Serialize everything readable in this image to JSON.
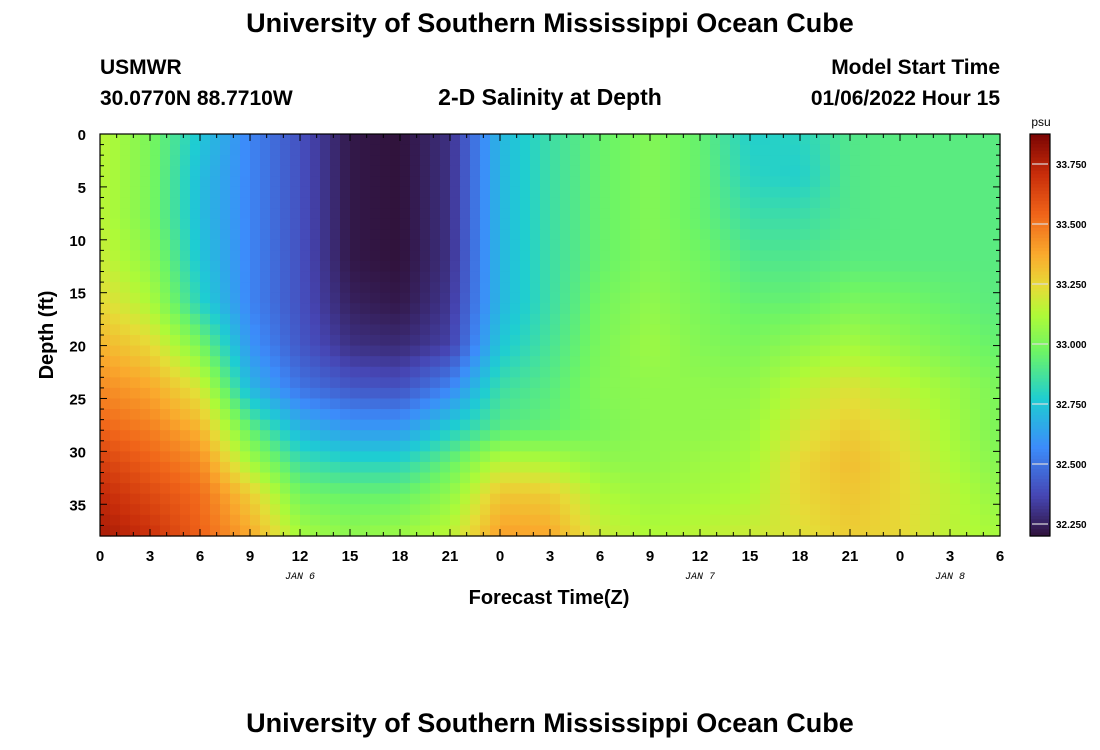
{
  "header": {
    "title": "University of Southern Mississippi Ocean Cube",
    "station": "USMWR",
    "coords": "30.0770N  88.7710W",
    "plot_title": "2-D Salinity at Depth",
    "model_start_label": "Model Start Time",
    "model_start_value": "01/06/2022 Hour 15"
  },
  "footer": {
    "title": "University of Southern Mississippi Ocean Cube"
  },
  "chart_data": {
    "type": "heatmap",
    "xlabel": "Forecast Time(Z)",
    "ylabel": "Depth (ft)",
    "colorbar_unit": "psu",
    "x_tick_labels": [
      "0",
      "3",
      "6",
      "9",
      "12",
      "15",
      "18",
      "21",
      "0",
      "3",
      "6",
      "9",
      "12",
      "15",
      "18",
      "21",
      "0",
      "3",
      "6"
    ],
    "date_labels": [
      {
        "text": "JAN 6",
        "tick_index": 4
      },
      {
        "text": "JAN 7",
        "tick_index": 12
      },
      {
        "text": "JAN 8",
        "tick_index": 17
      }
    ],
    "y_ticks": [
      0,
      5,
      10,
      15,
      20,
      25,
      30,
      35
    ],
    "ylim": [
      0,
      38
    ],
    "colorbar_ticks": [
      32.25,
      32.5,
      32.75,
      33.0,
      33.25,
      33.5,
      33.75
    ],
    "colorbar_tick_labels": [
      "32.250",
      "32.500",
      "32.750",
      "33.000",
      "33.250",
      "33.500",
      "33.750"
    ],
    "vmin": 32.2,
    "vmax": 33.875,
    "depths_ft": [
      0,
      4,
      8,
      12,
      16,
      20,
      24,
      28,
      31,
      34,
      38
    ],
    "times_index": [
      0,
      3,
      6,
      9,
      12,
      15,
      18,
      21,
      24,
      27,
      30,
      33,
      36,
      39,
      42,
      45,
      48,
      51,
      54
    ],
    "salinity_psu": [
      [
        33.15,
        33.0,
        32.75,
        32.55,
        32.4,
        32.22,
        32.2,
        32.3,
        32.7,
        32.85,
        32.95,
        33.02,
        32.95,
        32.78,
        32.8,
        32.9,
        32.92,
        32.92,
        32.92
      ],
      [
        33.15,
        33.0,
        32.72,
        32.55,
        32.4,
        32.22,
        32.2,
        32.3,
        32.7,
        32.85,
        32.95,
        33.02,
        32.95,
        32.8,
        32.78,
        32.9,
        32.92,
        32.92,
        32.92
      ],
      [
        33.15,
        33.0,
        32.72,
        32.55,
        32.4,
        32.22,
        32.2,
        32.3,
        32.7,
        32.85,
        32.95,
        33.02,
        32.95,
        32.85,
        32.85,
        32.9,
        32.92,
        32.92,
        32.92
      ],
      [
        33.18,
        33.05,
        32.75,
        32.55,
        32.4,
        32.22,
        32.2,
        32.3,
        32.7,
        32.85,
        32.95,
        33.02,
        32.98,
        32.9,
        32.9,
        32.92,
        32.92,
        32.92,
        32.92
      ],
      [
        33.25,
        33.12,
        32.8,
        32.55,
        32.4,
        32.25,
        32.22,
        32.32,
        32.7,
        32.85,
        32.98,
        33.05,
        33.0,
        32.95,
        32.95,
        33.0,
        32.98,
        32.95,
        32.92
      ],
      [
        33.35,
        33.25,
        33.0,
        32.6,
        32.42,
        32.3,
        32.28,
        32.35,
        32.75,
        32.88,
        33.0,
        33.08,
        33.02,
        33.0,
        33.05,
        33.1,
        33.05,
        33.0,
        32.95
      ],
      [
        33.45,
        33.38,
        33.2,
        32.7,
        32.5,
        32.42,
        32.4,
        32.55,
        32.85,
        32.92,
        33.02,
        33.05,
        33.05,
        33.05,
        33.15,
        33.22,
        33.15,
        33.08,
        33.0
      ],
      [
        33.55,
        33.48,
        33.35,
        32.95,
        32.7,
        32.62,
        32.62,
        32.78,
        32.92,
        32.95,
        33.0,
        33.05,
        33.05,
        33.08,
        33.2,
        33.28,
        33.22,
        33.1,
        33.0
      ],
      [
        33.65,
        33.55,
        33.45,
        33.1,
        32.85,
        32.8,
        32.8,
        32.95,
        33.15,
        33.12,
        33.05,
        33.05,
        33.08,
        33.1,
        33.25,
        33.32,
        33.25,
        33.12,
        33.02
      ],
      [
        33.72,
        33.62,
        33.52,
        33.28,
        32.98,
        32.95,
        32.95,
        33.05,
        33.3,
        33.28,
        33.12,
        33.08,
        33.1,
        33.12,
        33.25,
        33.3,
        33.25,
        33.15,
        33.05
      ],
      [
        33.78,
        33.7,
        33.55,
        33.38,
        33.1,
        33.05,
        33.08,
        33.15,
        33.4,
        33.38,
        33.18,
        33.12,
        33.15,
        33.18,
        33.22,
        33.28,
        33.25,
        33.15,
        33.1
      ]
    ]
  }
}
